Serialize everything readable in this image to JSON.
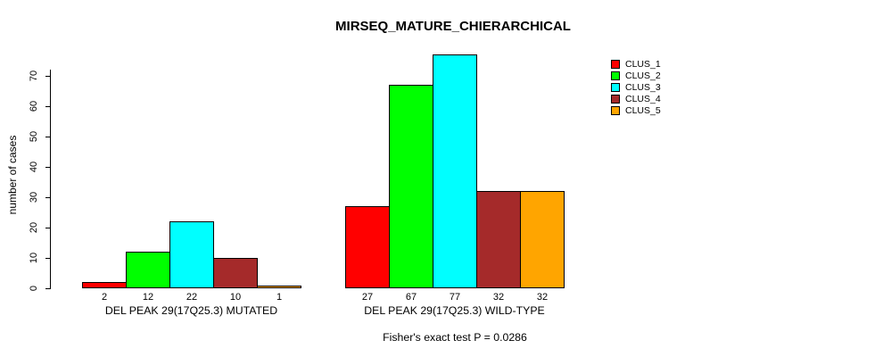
{
  "chart_data": {
    "type": "bar",
    "title": "MIRSEQ_MATURE_CHIERARCHICAL",
    "ylabel": "number of cases",
    "xlabel": "",
    "ylim": [
      0,
      77
    ],
    "yticks": [
      0,
      10,
      20,
      30,
      40,
      50,
      60,
      70
    ],
    "grid": false,
    "legend_position": "right",
    "categories": [
      "DEL PEAK 29(17Q25.3) MUTATED",
      "DEL PEAK 29(17Q25.3) WILD-TYPE"
    ],
    "series": [
      {
        "name": "CLUS_1",
        "color": "#ff0000",
        "values": [
          2,
          27
        ]
      },
      {
        "name": "CLUS_2",
        "color": "#00ff00",
        "values": [
          12,
          67
        ]
      },
      {
        "name": "CLUS_3",
        "color": "#00ffff",
        "values": [
          22,
          77
        ]
      },
      {
        "name": "CLUS_4",
        "color": "#a52a2a",
        "values": [
          10,
          32
        ]
      },
      {
        "name": "CLUS_5",
        "color": "#ffa500",
        "values": [
          1,
          32
        ]
      }
    ],
    "bar_value_labels_shown": true,
    "bar_border_color": "#000000",
    "background_color": "#ffffff",
    "annotation": "Fisher's exact test P = 0.0286"
  }
}
